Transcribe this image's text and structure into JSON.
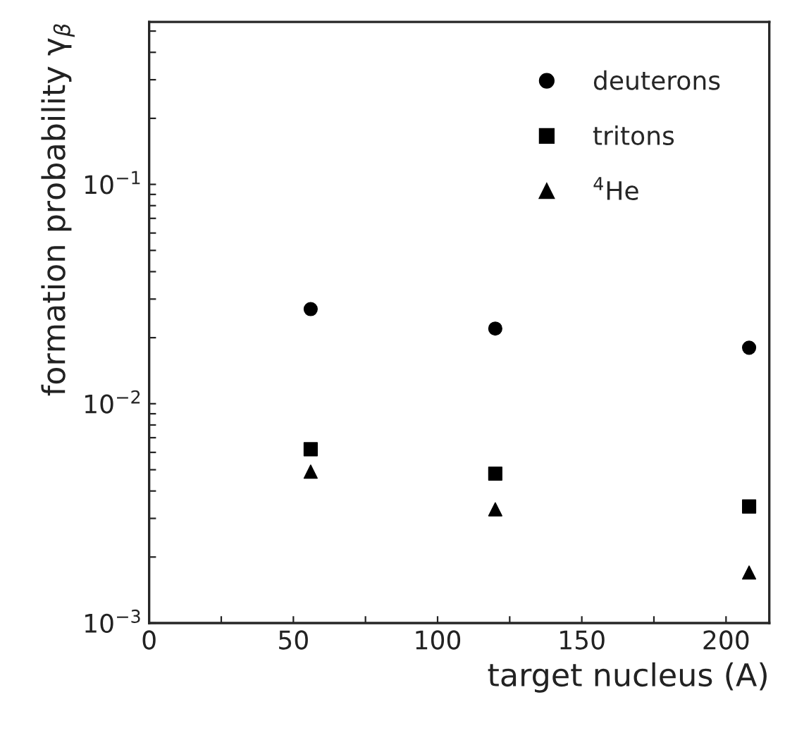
{
  "chart_data": {
    "type": "scatter",
    "xlabel": "target nucleus (A)",
    "ylabel": "formation probability γ$_{β}$",
    "x": [
      56,
      120,
      208
    ],
    "series": [
      {
        "name": "deuterons",
        "color": "#000000",
        "marker": "circle",
        "values": [
          0.027,
          0.022,
          0.018
        ]
      },
      {
        "name": "tritons",
        "color": "#000000",
        "marker": "square",
        "values": [
          0.0062,
          0.0048,
          0.0034
        ]
      },
      {
        "name": "$^{4}$He",
        "color": "#000000",
        "marker": "triangle",
        "values": [
          0.0049,
          0.0033,
          0.0017
        ]
      }
    ],
    "log": "y",
    "xlim": [
      0,
      215
    ],
    "ylim": [
      0.001,
      0.55
    ],
    "xticks": [
      0,
      {
        "value": 25,
        "label": null
      },
      50,
      {
        "value": 75,
        "label": null
      },
      100,
      {
        "value": 125,
        "label": null
      },
      150,
      {
        "value": 175,
        "label": null
      },
      200
    ],
    "yticks": [
      {
        "value": 0.001,
        "label": "10$^{−3}$"
      },
      {
        "value": 0.002,
        "label": null
      },
      {
        "value": 0.003,
        "label": null
      },
      {
        "value": 0.004,
        "label": null
      },
      {
        "value": 0.005,
        "label": null
      },
      {
        "value": 0.006,
        "label": null
      },
      {
        "value": 0.007,
        "label": null
      },
      {
        "value": 0.008,
        "label": null
      },
      {
        "value": 0.009,
        "label": null
      },
      {
        "value": 0.01,
        "label": "10$^{−2}$"
      },
      {
        "value": 0.02,
        "label": null
      },
      {
        "value": 0.03,
        "label": null
      },
      {
        "value": 0.04,
        "label": null
      },
      {
        "value": 0.05,
        "label": null
      },
      {
        "value": 0.06,
        "label": null
      },
      {
        "value": 0.07,
        "label": null
      },
      {
        "value": 0.08,
        "label": null
      },
      {
        "value": 0.09,
        "label": null
      },
      {
        "value": 0.1,
        "label": "10$^{−1}$"
      },
      {
        "value": 0.2,
        "label": null
      },
      {
        "value": 0.3,
        "label": null
      },
      {
        "value": 0.4,
        "label": null
      },
      {
        "value": 0.5,
        "label": null
      }
    ],
    "grid": false,
    "legend": "top right"
  }
}
